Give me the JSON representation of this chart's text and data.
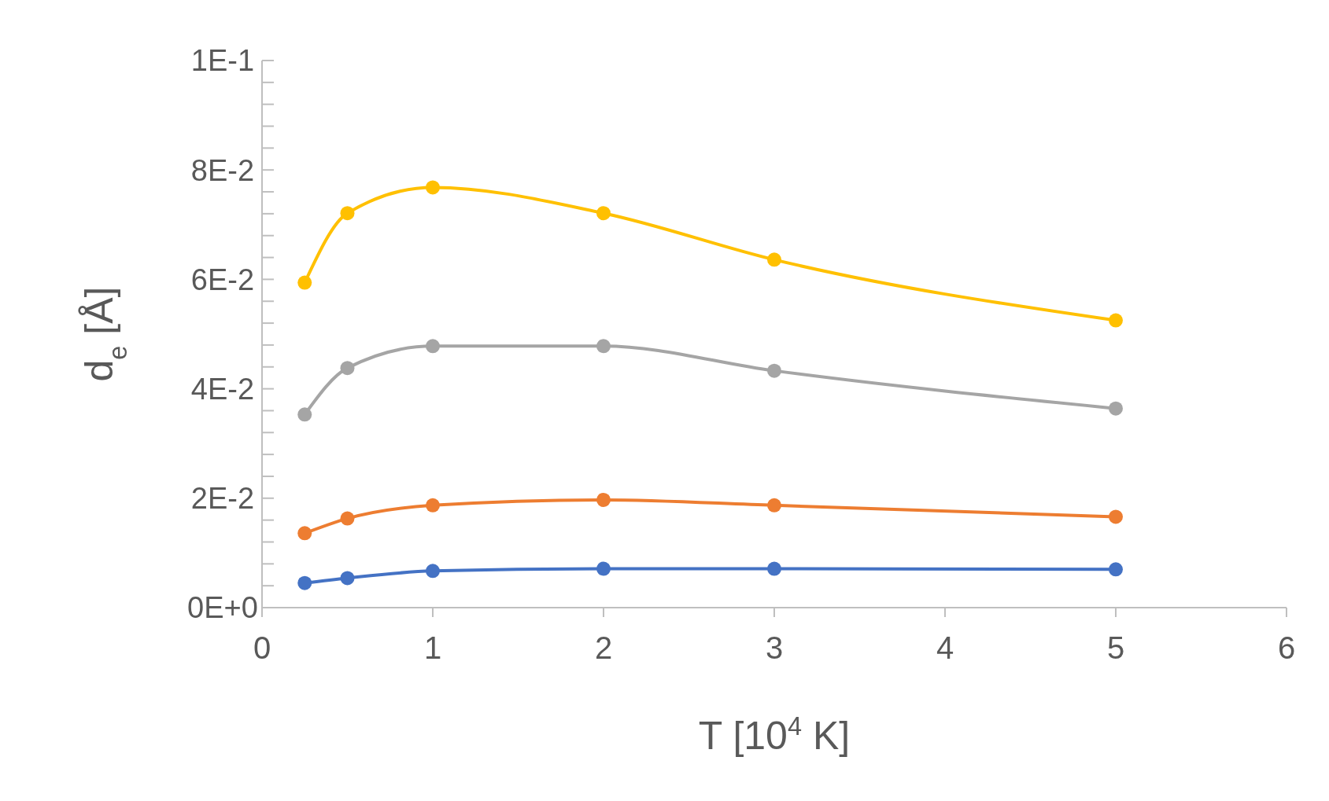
{
  "chart_data": {
    "type": "line",
    "xlabel": "T [10$^{4}$ K]",
    "ylabel": "d$_{e}$ [Å]",
    "x": [
      0.25,
      0.5,
      1,
      2,
      3,
      5
    ],
    "series": [
      {
        "color": "#4472c4",
        "values": [
          0.0045,
          0.0054,
          0.0067,
          0.0071,
          0.0071,
          0.007
        ]
      },
      {
        "color": "#ed7d31",
        "values": [
          0.0136,
          0.0163,
          0.0187,
          0.0197,
          0.0187,
          0.0166
        ]
      },
      {
        "color": "#a5a5a5",
        "values": [
          0.0353,
          0.0438,
          0.0478,
          0.0478,
          0.0433,
          0.0364
        ]
      },
      {
        "color": "#ffc000",
        "values": [
          0.0594,
          0.0721,
          0.0768,
          0.0721,
          0.0636,
          0.0525
        ]
      }
    ],
    "xlim": [
      0,
      6
    ],
    "xticks": [
      0,
      1,
      2,
      3,
      4,
      5,
      6
    ],
    "ylim": [
      0,
      0.1
    ],
    "yticks": [
      {
        "value": 0,
        "label": "0E+0"
      },
      {
        "value": 0.004,
        "label": null
      },
      {
        "value": 0.008,
        "label": null
      },
      {
        "value": 0.012,
        "label": null
      },
      {
        "value": 0.016,
        "label": null
      },
      {
        "value": 0.02,
        "label": "2E-2"
      },
      {
        "value": 0.024,
        "label": null
      },
      {
        "value": 0.028,
        "label": null
      },
      {
        "value": 0.032,
        "label": null
      },
      {
        "value": 0.036,
        "label": null
      },
      {
        "value": 0.04,
        "label": "4E-2"
      },
      {
        "value": 0.044,
        "label": null
      },
      {
        "value": 0.048,
        "label": null
      },
      {
        "value": 0.052,
        "label": null
      },
      {
        "value": 0.056,
        "label": null
      },
      {
        "value": 0.06,
        "label": "6E-2"
      },
      {
        "value": 0.064,
        "label": null
      },
      {
        "value": 0.068,
        "label": null
      },
      {
        "value": 0.072,
        "label": null
      },
      {
        "value": 0.076,
        "label": null
      },
      {
        "value": 0.08,
        "label": "8E-2"
      },
      {
        "value": 0.084,
        "label": null
      },
      {
        "value": 0.088,
        "label": null
      },
      {
        "value": 0.092,
        "label": null
      },
      {
        "value": 0.096,
        "label": null
      },
      {
        "value": 0.1,
        "label": "1E-1"
      }
    ],
    "grid": false,
    "marker": "circle",
    "line_style": "solid"
  }
}
